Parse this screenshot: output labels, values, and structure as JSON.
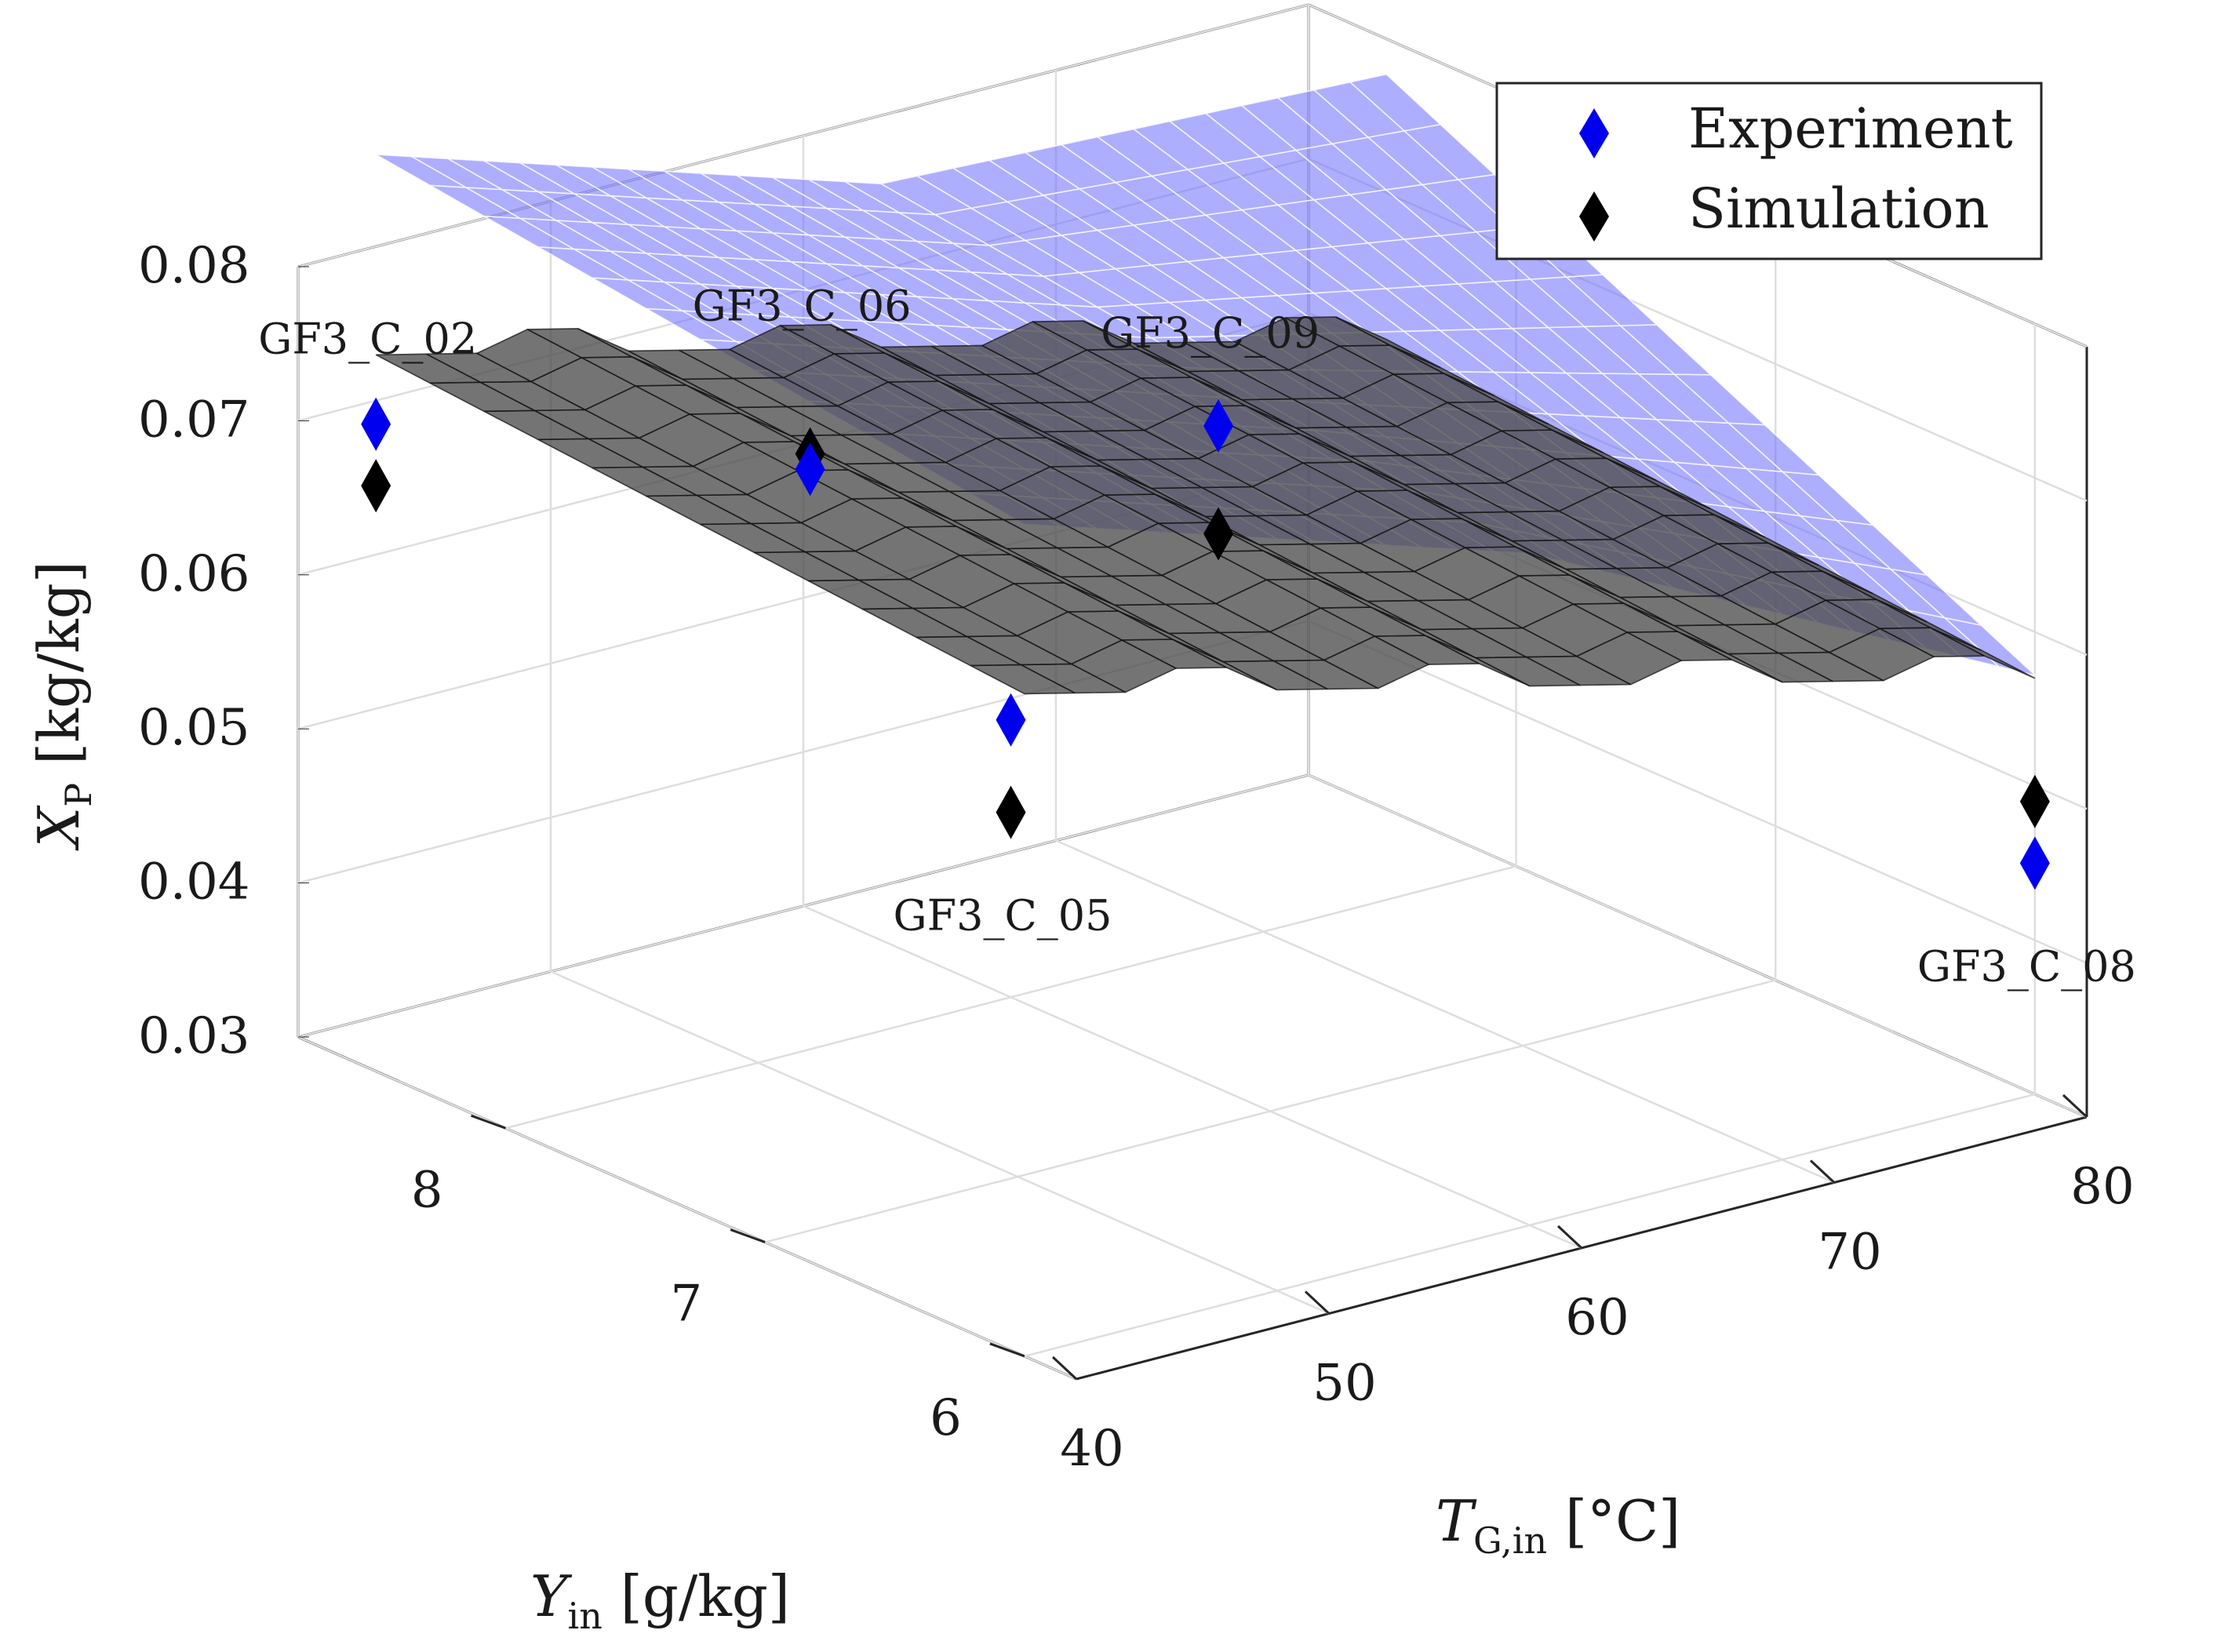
{
  "chart_data": {
    "type": "surface3d+scatter3d",
    "title": "",
    "axes": {
      "x": {
        "symbol": "T",
        "subscript": "G,in",
        "unit": " [°C]",
        "range": [
          40,
          80
        ],
        "ticks": [
          "40",
          "50",
          "60",
          "70",
          "80"
        ]
      },
      "y": {
        "symbol": "Y",
        "subscript": "in",
        "unit": " [g/kg]",
        "range": [
          5.8,
          8.8
        ],
        "ticks": [
          "6",
          "7",
          "8"
        ]
      },
      "z": {
        "symbol": "X",
        "subscript": "P",
        "unit": " [kg/kg]",
        "range": [
          0.03,
          0.08
        ],
        "ticks": [
          "0.03",
          "0.04",
          "0.05",
          "0.06",
          "0.07",
          "0.08"
        ]
      }
    },
    "grid": true,
    "legend": {
      "position": "top-right",
      "entries": [
        {
          "label": "Experiment",
          "color": "#0000ee",
          "marker": "diamond"
        },
        {
          "label": "Simulation",
          "color": "#000000",
          "marker": "diamond"
        }
      ]
    },
    "surfaces": [
      {
        "name": "Experiment fit",
        "color": "#6b6bff",
        "opacity": 0.55
      },
      {
        "name": "Simulation fit",
        "color": "#4d4d4d",
        "opacity": 0.78
      }
    ],
    "points": [
      {
        "label": "GF3_C_02",
        "T": 40,
        "Y": 8.5,
        "experiment": 0.072,
        "simulation": 0.068
      },
      {
        "label": "GF3_C_06",
        "T": 50,
        "Y": 7.8,
        "experiment": 0.07,
        "simulation": 0.071
      },
      {
        "label": "GF3_C_09",
        "T": 60,
        "Y": 7.2,
        "experiment": 0.073,
        "simulation": 0.066
      },
      {
        "label": "GF3_C_05",
        "T": 60,
        "Y": 8.0,
        "experiment": 0.048,
        "simulation": 0.042
      },
      {
        "label": "GF3_C_08",
        "T": 80,
        "Y": 6.0,
        "experiment": 0.045,
        "simulation": 0.049
      }
    ]
  }
}
